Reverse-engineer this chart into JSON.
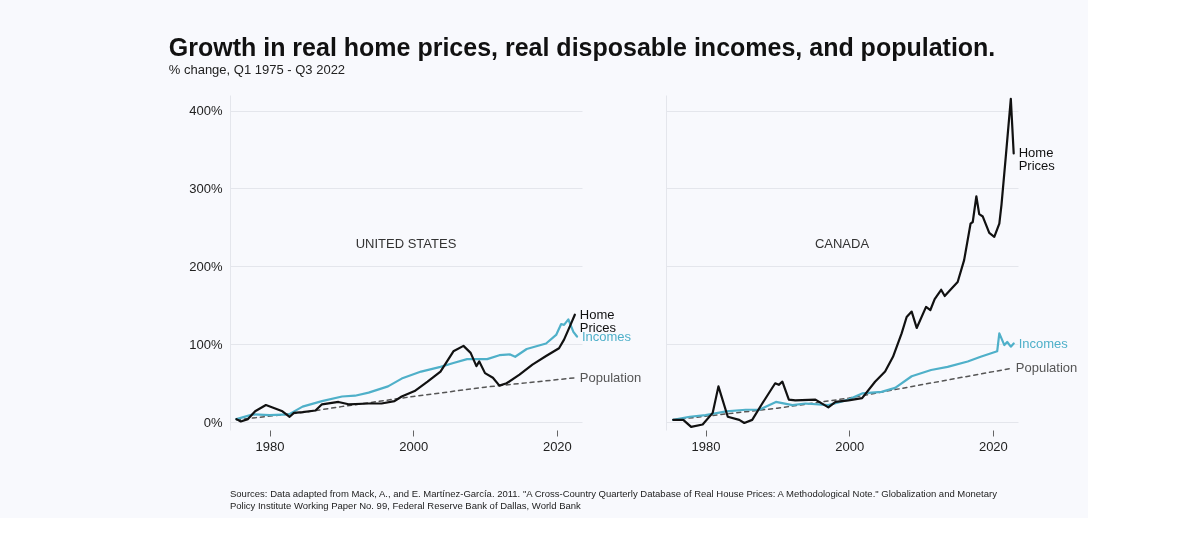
{
  "chart_data": [
    {
      "type": "line",
      "title": "Growth in real home prices, real disposable incomes, and population.",
      "subtitle": "% change, Q1 1975 - Q3 2022",
      "annotations": [
        "UNITED STATES",
        "Sources: Data adapted from Mack, A., and E. Martínez-García. 2011. \"A Cross-Country Quarterly Database of Real House Prices: A Methodological Note.\" Globalization and Monetary Policy Institute Working Paper No. 99, Federal Reserve Bank of Dallas, World Bank"
      ],
      "xlim": [
        1974.5,
        2023.5
      ],
      "xticks": [
        1980,
        2000,
        2020
      ],
      "ylim": [
        -10,
        420
      ],
      "yticks": [
        {
          "value": 0,
          "label": "0%"
        },
        {
          "value": 100,
          "label": "100%"
        },
        {
          "value": 200,
          "label": "200%"
        },
        {
          "value": 300,
          "label": "300%"
        },
        {
          "value": 400,
          "label": "400%"
        }
      ],
      "grid": "y",
      "marker": "none",
      "series": [
        {
          "name": "Population",
          "color": "#555555",
          "line_style": "dashed",
          "x": [
            1975.4,
            1985,
            1990,
            2000,
            2010,
            2022.5
          ],
          "values": [
            3,
            13,
            20,
            33,
            45,
            57
          ]
        },
        {
          "name": "Incomes",
          "color": "#4fb0c9",
          "line_style": "solid",
          "x": [
            1975.4,
            1977.7,
            1980,
            1982.7,
            1984.6,
            1987.3,
            1990.1,
            1991.9,
            1993.8,
            1996.5,
            1998.4,
            2001.1,
            2003.8,
            2005.6,
            2007.5,
            2010.3,
            2012,
            2013.5,
            2014.2,
            2015.8,
            2018.5,
            2019.9,
            2020.6,
            2021,
            2021.6,
            2022.3,
            2022.8
          ],
          "values": [
            4,
            10,
            9,
            10,
            20,
            27,
            33,
            34,
            38,
            46,
            56,
            65,
            71,
            76,
            81,
            81,
            86,
            87,
            84,
            94,
            101,
            112,
            126,
            125,
            132,
            116,
            110
          ]
        },
        {
          "name": "Home Prices",
          "color": "#111111",
          "line_style": "solid",
          "x": [
            1975.4,
            1976,
            1977,
            1978,
            1979.5,
            1980.7,
            1981.8,
            1982.8,
            1983.4,
            1984.6,
            1986.4,
            1987.3,
            1989.6,
            1991,
            1993.8,
            1995.6,
            1997.4,
            1998.4,
            2000.2,
            2002,
            2003.8,
            2005.6,
            2007,
            2008,
            2008.8,
            2009.2,
            2010,
            2011.1,
            2012,
            2013,
            2014.8,
            2016.6,
            2018.5,
            2020.3,
            2021,
            2021.9,
            2022.5
          ],
          "values": [
            4,
            1,
            4,
            14,
            22,
            18,
            14,
            7,
            12,
            13,
            15,
            23,
            26,
            23,
            24,
            24,
            27,
            33,
            40,
            52,
            65,
            91,
            98,
            89,
            72,
            78,
            63,
            57,
            47,
            50,
            61,
            74,
            85,
            95,
            106,
            125,
            138
          ]
        }
      ]
    },
    {
      "type": "line",
      "annotations": [
        "CANADA"
      ],
      "xlim": [
        1974.5,
        2023.5
      ],
      "xticks": [
        1980,
        2000,
        2020
      ],
      "ylim": [
        -10,
        420
      ],
      "yticks": [
        0,
        100,
        200,
        300,
        400
      ],
      "tick_labels": "x",
      "grid": "y",
      "marker": "none",
      "series": [
        {
          "name": "Population",
          "color": "#555555",
          "line_style": "dashed",
          "x": [
            1975.5,
            1990,
            2000,
            2010,
            2022.5
          ],
          "values": [
            3,
            18,
            31,
            48,
            69
          ]
        },
        {
          "name": "Incomes",
          "color": "#4fb0c9",
          "line_style": "solid",
          "x": [
            1975.5,
            1977.8,
            1980,
            1982.9,
            1985.6,
            1987.5,
            1989.8,
            1992.1,
            1993.9,
            1997.1,
            1999.9,
            2001.8,
            2004.5,
            2006.4,
            2008.7,
            2011.4,
            2013.7,
            2016.5,
            2018.3,
            2020.6,
            2020.9,
            2021.6,
            2022,
            2022.5,
            2022.9
          ],
          "values": [
            3,
            7,
            9,
            14,
            16,
            16,
            26,
            22,
            24,
            22,
            29,
            37,
            39,
            44,
            59,
            67,
            71,
            78,
            84,
            91,
            114,
            99,
            103,
            97,
            101
          ]
        },
        {
          "name": "Home Prices",
          "color": "#111111",
          "line_style": "solid",
          "x": [
            1975.5,
            1976.9,
            1978,
            1979.6,
            1981,
            1981.8,
            1983.1,
            1984.7,
            1985.4,
            1986.5,
            1987.9,
            1989.7,
            1990.2,
            1990.7,
            1991.6,
            1992.5,
            1995.3,
            1997.1,
            1998.1,
            1999.9,
            2001.8,
            2003.6,
            2005,
            2006.1,
            2007.3,
            2008,
            2008.7,
            2009.4,
            2010.7,
            2011.3,
            2011.9,
            2012.8,
            2013.3,
            2014,
            2015.1,
            2016,
            2016.9,
            2017.2,
            2017.7,
            2018.1,
            2018.6,
            2019.5,
            2020.2,
            2020.9,
            2021.2,
            2021.8,
            2022.5,
            2022.9
          ],
          "values": [
            3,
            3,
            -6,
            -3,
            12,
            46,
            7,
            3,
            -1,
            3,
            24,
            50,
            48,
            52,
            29,
            28,
            29,
            19,
            26,
            28,
            31,
            52,
            65,
            84,
            114,
            135,
            142,
            121,
            148,
            144,
            158,
            170,
            162,
            169,
            180,
            208,
            255,
            257,
            290,
            267,
            264,
            243,
            238,
            255,
            279,
            341,
            415,
            345
          ]
        }
      ]
    }
  ]
}
